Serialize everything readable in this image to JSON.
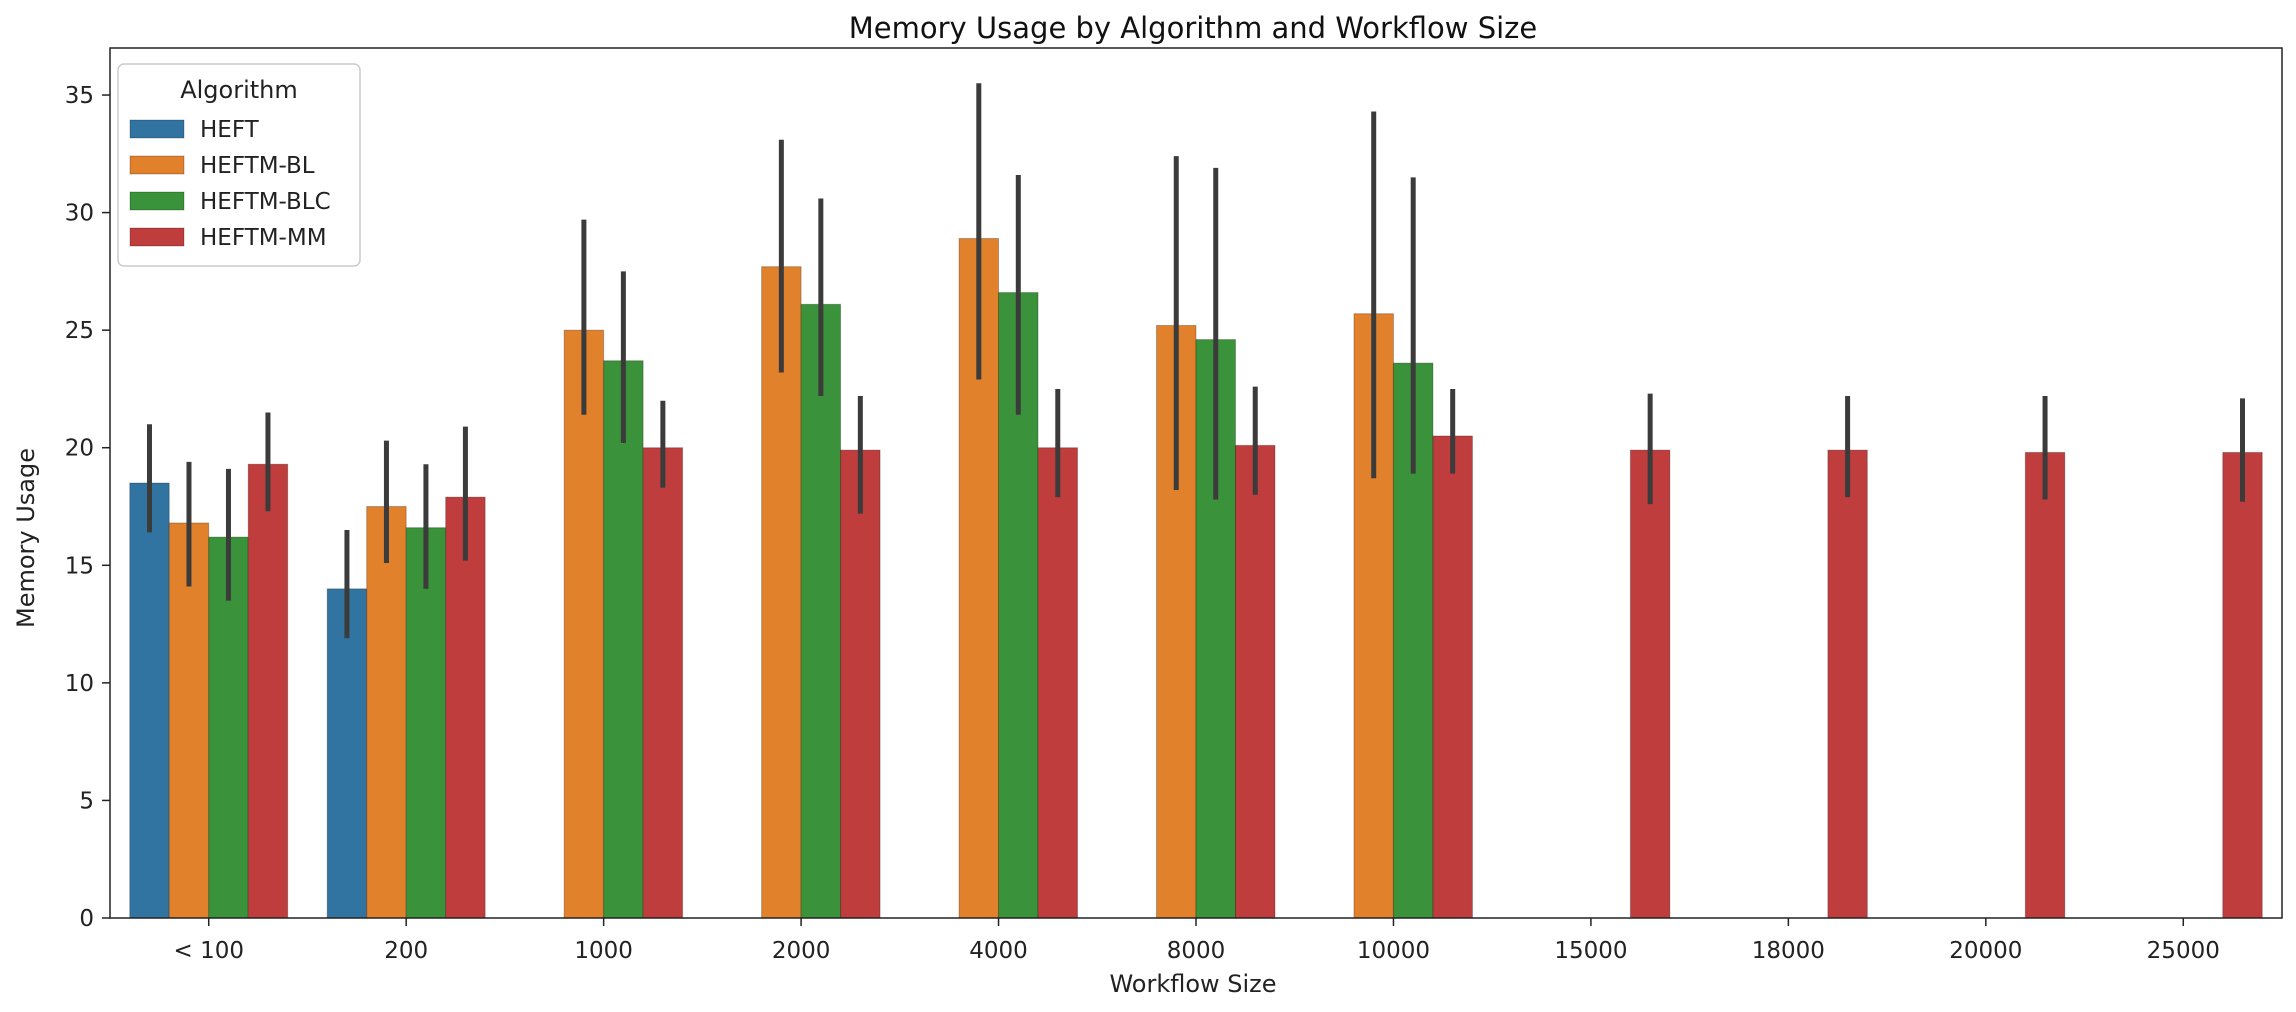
{
  "chart_data": {
    "type": "bar",
    "title": "Memory Usage by Algorithm and Workflow Size",
    "xlabel": "Workflow Size",
    "ylabel": "Memory Usage",
    "ylim": [
      0,
      37
    ],
    "yticks": [
      0,
      5,
      10,
      15,
      20,
      25,
      30,
      35
    ],
    "grid": false,
    "legend": {
      "title": "Algorithm",
      "placement": "top-left"
    },
    "categories": [
      "< 100",
      "200",
      "1000",
      "2000",
      "4000",
      "8000",
      "10000",
      "15000",
      "18000",
      "20000",
      "25000"
    ],
    "series": [
      {
        "name": "HEFT",
        "color": "#3274a1",
        "values": [
          18.5,
          14.0,
          null,
          null,
          null,
          null,
          null,
          null,
          null,
          null,
          null
        ],
        "error_low": [
          16.4,
          11.9,
          null,
          null,
          null,
          null,
          null,
          null,
          null,
          null,
          null
        ],
        "error_high": [
          21.0,
          16.5,
          null,
          null,
          null,
          null,
          null,
          null,
          null,
          null,
          null
        ]
      },
      {
        "name": "HEFTM-BL",
        "color": "#e1812c",
        "values": [
          16.8,
          17.5,
          25.0,
          27.7,
          28.9,
          25.2,
          25.7,
          null,
          null,
          null,
          null
        ],
        "error_low": [
          14.1,
          15.1,
          21.4,
          23.2,
          22.9,
          18.2,
          18.7,
          null,
          null,
          null,
          null
        ],
        "error_high": [
          19.4,
          20.3,
          29.7,
          33.1,
          35.5,
          32.4,
          34.3,
          null,
          null,
          null,
          null
        ]
      },
      {
        "name": "HEFTM-BLC",
        "color": "#3a923a",
        "values": [
          16.2,
          16.6,
          23.7,
          26.1,
          26.6,
          24.6,
          23.6,
          null,
          null,
          null,
          null
        ],
        "error_low": [
          13.5,
          14.0,
          20.2,
          22.2,
          21.4,
          17.8,
          18.9,
          null,
          null,
          null,
          null
        ],
        "error_high": [
          19.1,
          19.3,
          27.5,
          30.6,
          31.6,
          31.9,
          31.5,
          null,
          null,
          null,
          null
        ]
      },
      {
        "name": "HEFTM-MM",
        "color": "#c03d3e",
        "values": [
          19.3,
          17.9,
          20.0,
          19.9,
          20.0,
          20.1,
          20.5,
          19.9,
          19.9,
          19.8,
          19.8
        ],
        "error_low": [
          17.3,
          15.2,
          18.3,
          17.2,
          17.9,
          18.0,
          18.9,
          17.6,
          17.9,
          17.8,
          17.7
        ],
        "error_high": [
          21.5,
          20.9,
          22.0,
          22.2,
          22.5,
          22.6,
          22.5,
          22.3,
          22.2,
          22.2,
          22.1
        ]
      }
    ]
  }
}
